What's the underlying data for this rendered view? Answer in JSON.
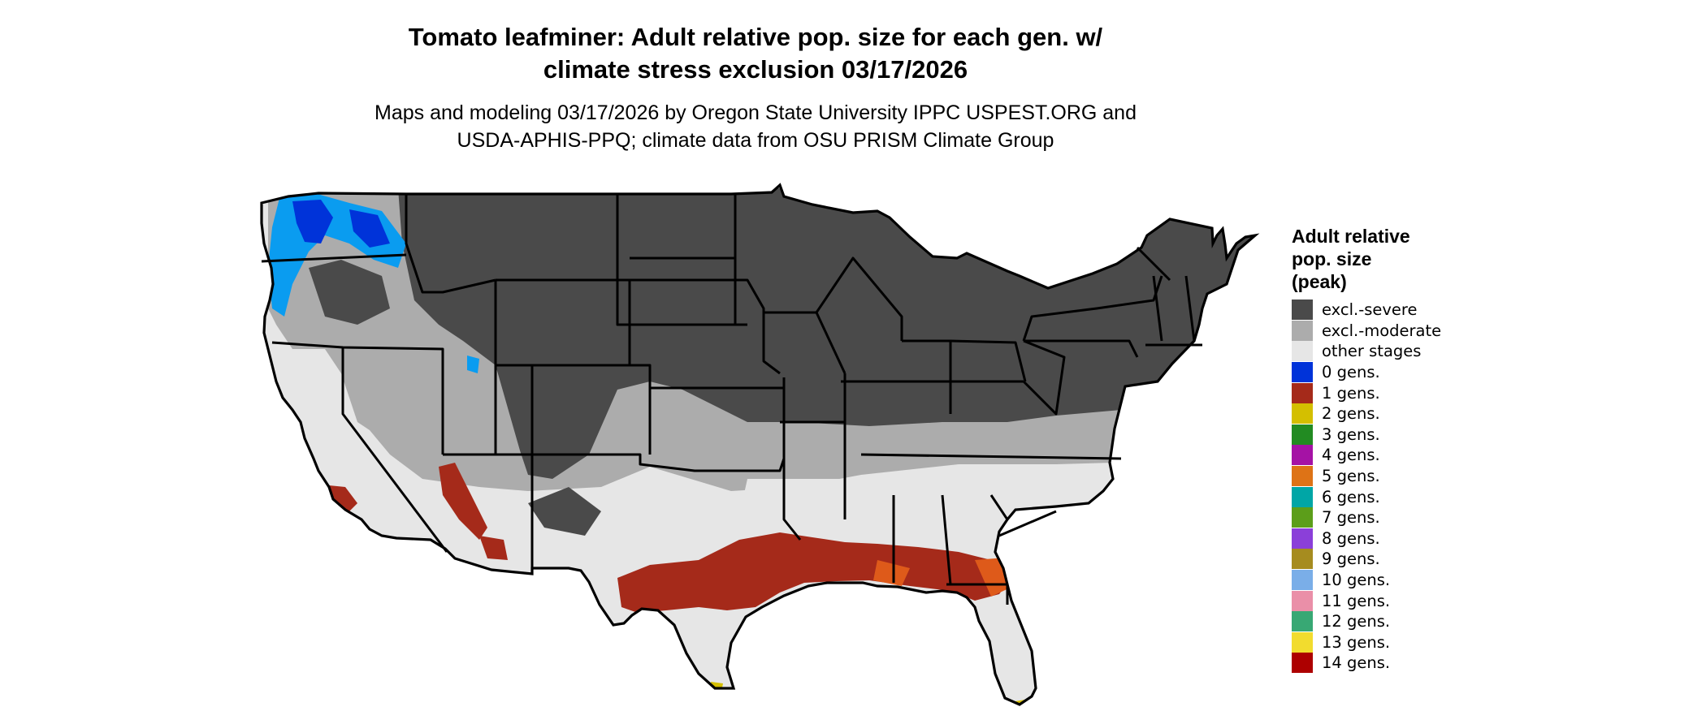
{
  "title_line1": "Tomato leafminer: Adult relative pop. size for each gen. w/",
  "title_line2": "climate stress exclusion 03/17/2026",
  "subtitle_line1": "Maps and modeling 03/17/2026 by Oregon State University IPPC USPEST.ORG and",
  "subtitle_line2": "USDA-APHIS-PPQ; climate data from OSU PRISM Climate Group",
  "legend": {
    "title_lines": [
      "Adult relative",
      "pop. size",
      "(peak)"
    ],
    "items": [
      {
        "label": "excl.-severe",
        "color": "#4a4a4a"
      },
      {
        "label": "excl.-moderate",
        "color": "#acacac"
      },
      {
        "label": "other stages",
        "color": "#e6e6e6"
      },
      {
        "label": "0 gens.",
        "color": "#0033d9"
      },
      {
        "label": "1 gens.",
        "color": "#a52a1a"
      },
      {
        "label": "2 gens.",
        "color": "#d4bf00"
      },
      {
        "label": "3 gens.",
        "color": "#228b22"
      },
      {
        "label": "4 gens.",
        "color": "#a512a5"
      },
      {
        "label": "5 gens.",
        "color": "#de7316"
      },
      {
        "label": "6 gens.",
        "color": "#00a6a6"
      },
      {
        "label": "7 gens.",
        "color": "#5c9e1a"
      },
      {
        "label": "8 gens.",
        "color": "#8b3fd9"
      },
      {
        "label": "9 gens.",
        "color": "#a68c1f"
      },
      {
        "label": "10 gens.",
        "color": "#7aaee8"
      },
      {
        "label": "11 gens.",
        "color": "#ea8fa8"
      },
      {
        "label": "12 gens.",
        "color": "#38a874"
      },
      {
        "label": "13 gens.",
        "color": "#f2dc2e"
      },
      {
        "label": "14 gens.",
        "color": "#ad0000"
      }
    ]
  }
}
